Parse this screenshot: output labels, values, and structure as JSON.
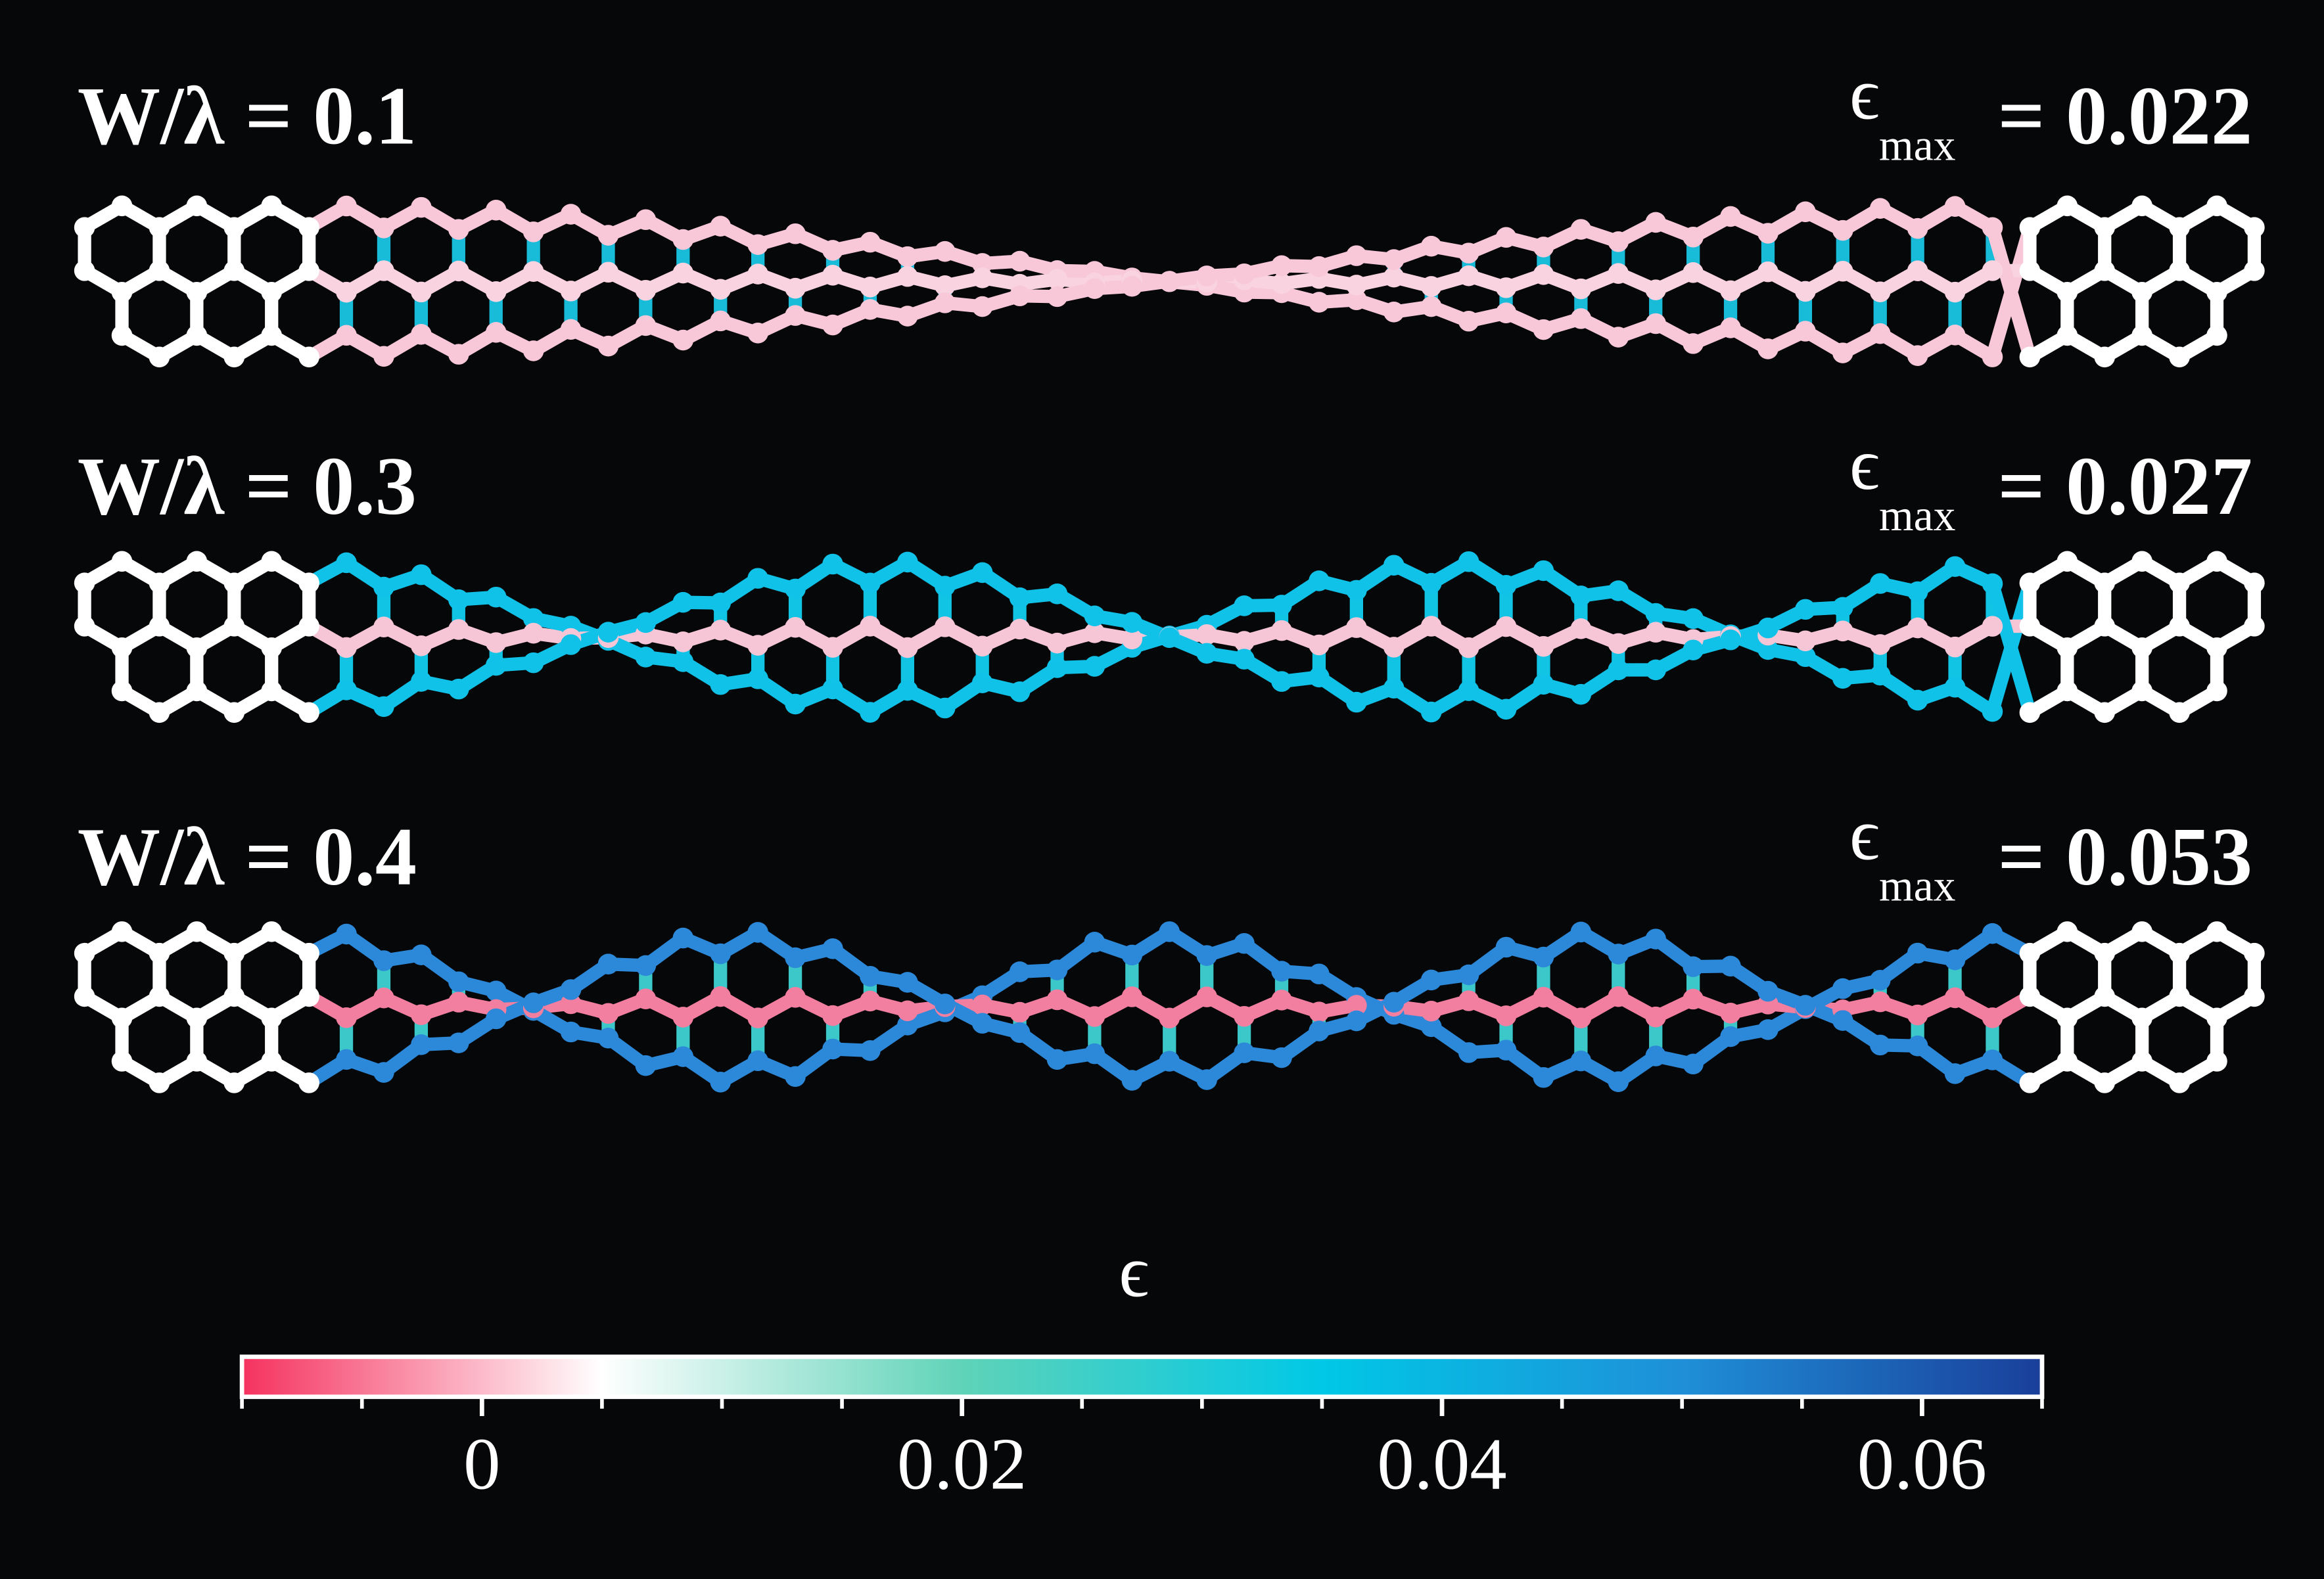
{
  "panels": [
    {
      "label": "W/λ = 0.1",
      "strain_symbol": "ϵ",
      "strain_subscript": "max",
      "strain_value": "= 0.022",
      "colors": {
        "outer": "#f8c8d8",
        "inner": "#f9d3df",
        "rung": "#18bcd8"
      }
    },
    {
      "label": "W/λ = 0.3",
      "strain_symbol": "ϵ",
      "strain_subscript": "max",
      "strain_value": "= 0.027",
      "colors": {
        "outer": "#10c2e8",
        "inner": "#f6c6d6",
        "rung": "#12c4e4"
      }
    },
    {
      "label": "W/λ = 0.4",
      "strain_symbol": "ϵ",
      "strain_subscript": "max",
      "strain_value": "= 0.053",
      "colors": {
        "outer": "#2c88d8",
        "inner": "#f27ea0",
        "rung": "#3cc8c8"
      }
    }
  ],
  "chart_data": {
    "type": "colorbar",
    "label": "ϵ",
    "xlim": [
      -0.01,
      0.065
    ],
    "xticks": [
      0,
      0.02,
      0.04,
      0.06
    ],
    "minor_xticks": [
      -0.01,
      -0.005,
      0.005,
      0.01,
      0.015,
      0.025,
      0.03,
      0.035,
      0.045,
      0.05,
      0.055,
      0.065
    ],
    "colormap": [
      "#f5325f",
      "#ffffff",
      "#5fd3b8",
      "#00c8e6",
      "#1f8fd8",
      "#1a3f9a"
    ]
  }
}
